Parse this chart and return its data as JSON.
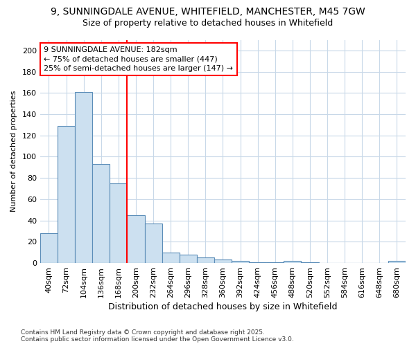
{
  "title1": "9, SUNNINGDALE AVENUE, WHITEFIELD, MANCHESTER, M45 7GW",
  "title2": "Size of property relative to detached houses in Whitefield",
  "xlabel": "Distribution of detached houses by size in Whitefield",
  "ylabel": "Number of detached properties",
  "categories": [
    "40sqm",
    "72sqm",
    "104sqm",
    "136sqm",
    "168sqm",
    "200sqm",
    "232sqm",
    "264sqm",
    "296sqm",
    "328sqm",
    "360sqm",
    "392sqm",
    "424sqm",
    "456sqm",
    "488sqm",
    "520sqm",
    "552sqm",
    "584sqm",
    "616sqm",
    "648sqm",
    "680sqm"
  ],
  "values": [
    28,
    129,
    161,
    93,
    75,
    45,
    37,
    10,
    8,
    5,
    3,
    2,
    1,
    1,
    2,
    1,
    0,
    0,
    0,
    0,
    2
  ],
  "bar_color": "#cce0f0",
  "bar_edge_color": "#5b8db8",
  "vline_color": "red",
  "vline_x": 4.5,
  "annotation_text": "9 SUNNINGDALE AVENUE: 182sqm\n← 75% of detached houses are smaller (447)\n25% of semi-detached houses are larger (147) →",
  "annotation_box_color": "white",
  "annotation_box_edge_color": "red",
  "ylim": [
    0,
    210
  ],
  "yticks": [
    0,
    20,
    40,
    60,
    80,
    100,
    120,
    140,
    160,
    180,
    200
  ],
  "background_color": "#ffffff",
  "plot_bg_color": "#ffffff",
  "grid_color": "#c8d8e8",
  "footer_text": "Contains HM Land Registry data © Crown copyright and database right 2025.\nContains public sector information licensed under the Open Government Licence v3.0.",
  "title1_fontsize": 10,
  "title2_fontsize": 9,
  "xlabel_fontsize": 9,
  "ylabel_fontsize": 8,
  "tick_fontsize": 8,
  "annot_fontsize": 8
}
